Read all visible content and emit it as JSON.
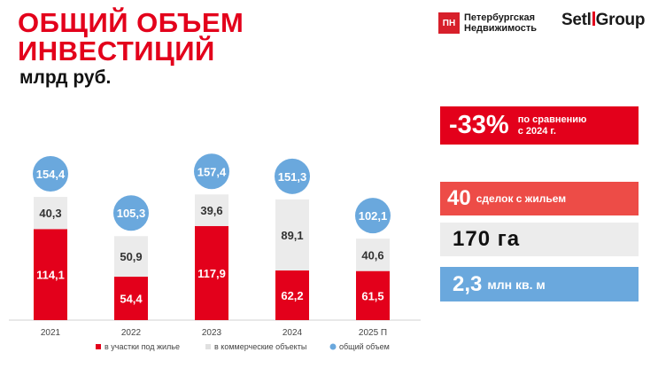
{
  "header": {
    "title_line1": "ОБЩИЙ ОБЪЕМ",
    "title_line2": "ИНВЕСТИЦИЙ",
    "subtitle": "млрд руб."
  },
  "logos": {
    "pn_mark": "ПН",
    "pn_line1": "Петербургская",
    "pn_line2": "Недвижимость",
    "setl_part1": "Setl",
    "setl_part2": "Group"
  },
  "kpis": {
    "change_value": "-33%",
    "change_text_line1": "по сравнению",
    "change_text_line2": "с 2024 г.",
    "deals_value": "40",
    "deals_text": "сделок с жильем",
    "area_ha": "170 га",
    "sqm_value": "2,3",
    "sqm_text": "млн кв. м"
  },
  "colors": {
    "housing": "#e3001b",
    "commercial": "#ebebeb",
    "total": "#6aa8dd"
  },
  "chart_data": {
    "type": "bar",
    "stacked": true,
    "categories": [
      "2021",
      "2022",
      "2023",
      "2024",
      "2025 П"
    ],
    "series": [
      {
        "name": "в участки под жилье",
        "values": [
          114.1,
          54.4,
          117.9,
          62.2,
          61.5
        ],
        "labels": [
          "114,1",
          "54,4",
          "117,9",
          "62,2",
          "61,5"
        ]
      },
      {
        "name": "в коммерческие объекты",
        "values": [
          40.3,
          50.9,
          39.6,
          89.1,
          40.6
        ],
        "labels": [
          "40,3",
          "50,9",
          "39,6",
          "89,1",
          "40,6"
        ]
      }
    ],
    "totals": {
      "name": "общий объем",
      "values": [
        154.4,
        105.3,
        157.4,
        151.3,
        102.1
      ],
      "labels": [
        "154,4",
        "105,3",
        "157,4",
        "151,3",
        "102,1"
      ]
    },
    "ylim": [
      0,
      160
    ],
    "legend_position": "bottom",
    "title": "ОБЩИЙ ОБЪЕМ ИНВЕСТИЦИЙ",
    "ylabel": "млрд руб."
  }
}
